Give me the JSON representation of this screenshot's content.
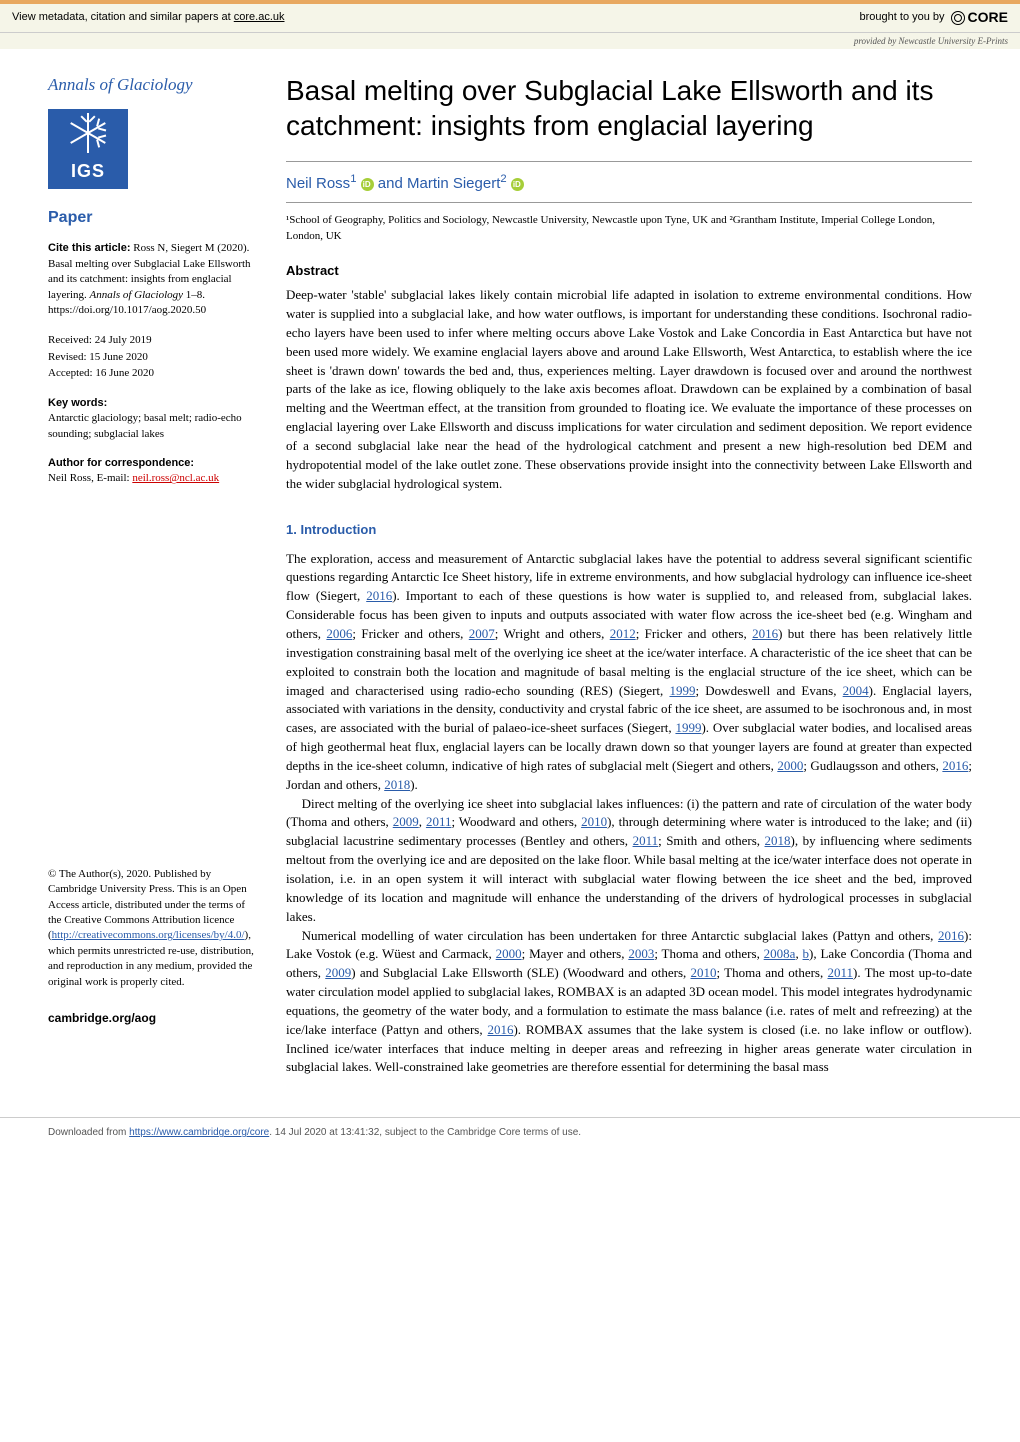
{
  "banner": {
    "left_prefix": "View metadata, citation and similar papers at ",
    "left_link": "core.ac.uk",
    "brought_by": "brought to you by",
    "core": "CORE",
    "provided_prefix": "provided by ",
    "provided_by": "Newcastle University E-Prints"
  },
  "sidebar": {
    "journal": "Annals of Glaciology",
    "igs": "IGS",
    "paper_label": "Paper",
    "cite_label": "Cite this article:",
    "cite_text": " Ross N, Siegert M (2020). Basal melting over Subglacial Lake Ellsworth and its catchment: insights from englacial layering. ",
    "cite_journal": "Annals of Glaciology",
    "cite_pages": " 1–8. https://doi.org/10.1017/aog.2020.50",
    "received": "Received: 24 July 2019",
    "revised": "Revised: 15 June 2020",
    "accepted": "Accepted: 16 June 2020",
    "keywords_label": "Key words:",
    "keywords": "Antarctic glaciology; basal melt; radio-echo sounding; subglacial lakes",
    "corr_label": "Author for correspondence:",
    "corr_name": "Neil Ross, E-mail: ",
    "corr_email": "neil.ross@ncl.ac.uk",
    "copyright": "© The Author(s), 2020. Published by Cambridge University Press. This is an Open Access article, distributed under the terms of the Creative Commons Attribution licence (",
    "cc_url": "http://creativecommons.org/licenses/by/4.0/",
    "copyright_tail": "), which permits unrestricted re-use, distribution, and reproduction in any medium, provided the original work is properly cited.",
    "cambridge": "cambridge.org/aog"
  },
  "article": {
    "title": "Basal melting over Subglacial Lake Ellsworth and its catchment: insights from englacial layering",
    "author1": "Neil Ross",
    "author1_sup": "1",
    "author_and": " and ",
    "author2": "Martin Siegert",
    "author2_sup": "2",
    "affil": "¹School of Geography, Politics and Sociology, Newcastle University, Newcastle upon Tyne, UK and ²Grantham Institute, Imperial College London, London, UK",
    "abstract_head": "Abstract",
    "abstract": "Deep-water 'stable' subglacial lakes likely contain microbial life adapted in isolation to extreme environmental conditions. How water is supplied into a subglacial lake, and how water outflows, is important for understanding these conditions. Isochronal radio-echo layers have been used to infer where melting occurs above Lake Vostok and Lake Concordia in East Antarctica but have not been used more widely. We examine englacial layers above and around Lake Ellsworth, West Antarctica, to establish where the ice sheet is 'drawn down' towards the bed and, thus, experiences melting. Layer drawdown is focused over and around the northwest parts of the lake as ice, flowing obliquely to the lake axis becomes afloat. Drawdown can be explained by a combination of basal melting and the Weertman effect, at the transition from grounded to floating ice. We evaluate the importance of these processes on englacial layering over Lake Ellsworth and discuss implications for water circulation and sediment deposition. We report evidence of a second subglacial lake near the head of the hydrological catchment and present a new high-resolution bed DEM and hydropotential model of the lake outlet zone. These observations provide insight into the connectivity between Lake Ellsworth and the wider subglacial hydrological system.",
    "intro_head": "1. Introduction",
    "para1_a": "The exploration, access and measurement of Antarctic subglacial lakes have the potential to address several significant scientific questions regarding Antarctic Ice Sheet history, life in extreme environments, and how subglacial hydrology can influence ice-sheet flow (Siegert, ",
    "y2016a": "2016",
    "para1_b": "). Important to each of these questions is how water is supplied to, and released from, subglacial lakes. Considerable focus has been given to inputs and outputs associated with water flow across the ice-sheet bed (e.g. Wingham and others, ",
    "y2006": "2006",
    "para1_c": "; Fricker and others, ",
    "y2007": "2007",
    "para1_d": "; Wright and others, ",
    "y2012": "2012",
    "para1_e": "; Fricker and others, ",
    "y2016b": "2016",
    "para1_f": ") but there has been relatively little investigation constraining basal melt of the overlying ice sheet at the ice/water interface. A characteristic of the ice sheet that can be exploited to constrain both the location and magnitude of basal melting is the englacial structure of the ice sheet, which can be imaged and characterised using radio-echo sounding (RES) (Siegert, ",
    "y1999a": "1999",
    "para1_g": "; Dowdeswell and Evans, ",
    "y2004": "2004",
    "para1_h": "). Englacial layers, associated with variations in the density, conductivity and crystal fabric of the ice sheet, are assumed to be isochronous and, in most cases, are associated with the burial of palaeo-ice-sheet surfaces (Siegert, ",
    "y1999b": "1999",
    "para1_i": "). Over subglacial water bodies, and localised areas of high geothermal heat flux, englacial layers can be locally drawn down so that younger layers are found at greater than expected depths in the ice-sheet column, indicative of high rates of subglacial melt (Siegert and others, ",
    "y2000a": "2000",
    "para1_j": "; Gudlaugsson and others, ",
    "y2016c": "2016",
    "para1_k": "; Jordan and others, ",
    "y2018a": "2018",
    "para1_l": ").",
    "para2_a": "Direct melting of the overlying ice sheet into subglacial lakes influences: (i) the pattern and rate of circulation of the water body (Thoma and others, ",
    "y2009a": "2009",
    "para2_b": ", ",
    "y2011a": "2011",
    "para2_c": "; Woodward and others, ",
    "y2010a": "2010",
    "para2_d": "), through determining where water is introduced to the lake; and (ii) subglacial lacustrine sedimentary processes (Bentley and others, ",
    "y2011b": "2011",
    "para2_e": "; Smith and others, ",
    "y2018b": "2018",
    "para2_f": "), by influencing where sediments meltout from the overlying ice and are deposited on the lake floor. While basal melting at the ice/water interface does not operate in isolation, i.e. in an open system it will interact with subglacial water flowing between the ice sheet and the bed, improved knowledge of its location and magnitude will enhance the understanding of the drivers of hydrological processes in subglacial lakes.",
    "para3_a": "Numerical modelling of water circulation has been undertaken for three Antarctic subglacial lakes (Pattyn and others, ",
    "y2016d": "2016",
    "para3_b": "): Lake Vostok (e.g. Wüest and Carmack, ",
    "y2000b": "2000",
    "para3_c": "; Mayer and others, ",
    "y2003": "2003",
    "para3_d": "; Thoma and others, ",
    "y2008a": "2008a",
    "para3_e": ", ",
    "y2008b": "b",
    "para3_f": "), Lake Concordia (Thoma and others, ",
    "y2009b": "2009",
    "para3_g": ") and Subglacial Lake Ellsworth (SLE) (Woodward and others, ",
    "y2010b": "2010",
    "para3_h": "; Thoma and others, ",
    "y2011c": "2011",
    "para3_i": "). The most up-to-date water circulation model applied to subglacial lakes, ROMBAX is an adapted 3D ocean model. This model integrates hydrodynamic equations, the geometry of the water body, and a formulation to estimate the mass balance (i.e. rates of melt and refreezing) at the ice/lake interface (Pattyn and others, ",
    "y2016e": "2016",
    "para3_j": "). ROMBAX assumes that the lake system is closed (i.e. no lake inflow or outflow). Inclined ice/water interfaces that induce melting in deeper areas and refreezing in higher areas generate water circulation in subglacial lakes. Well-constrained lake geometries are therefore essential for determining the basal mass"
  },
  "footer": {
    "prefix": "Downloaded from ",
    "url": "https://www.cambridge.org/core",
    "suffix": ". 14 Jul 2020 at 13:41:32, subject to the Cambridge Core terms of use."
  }
}
